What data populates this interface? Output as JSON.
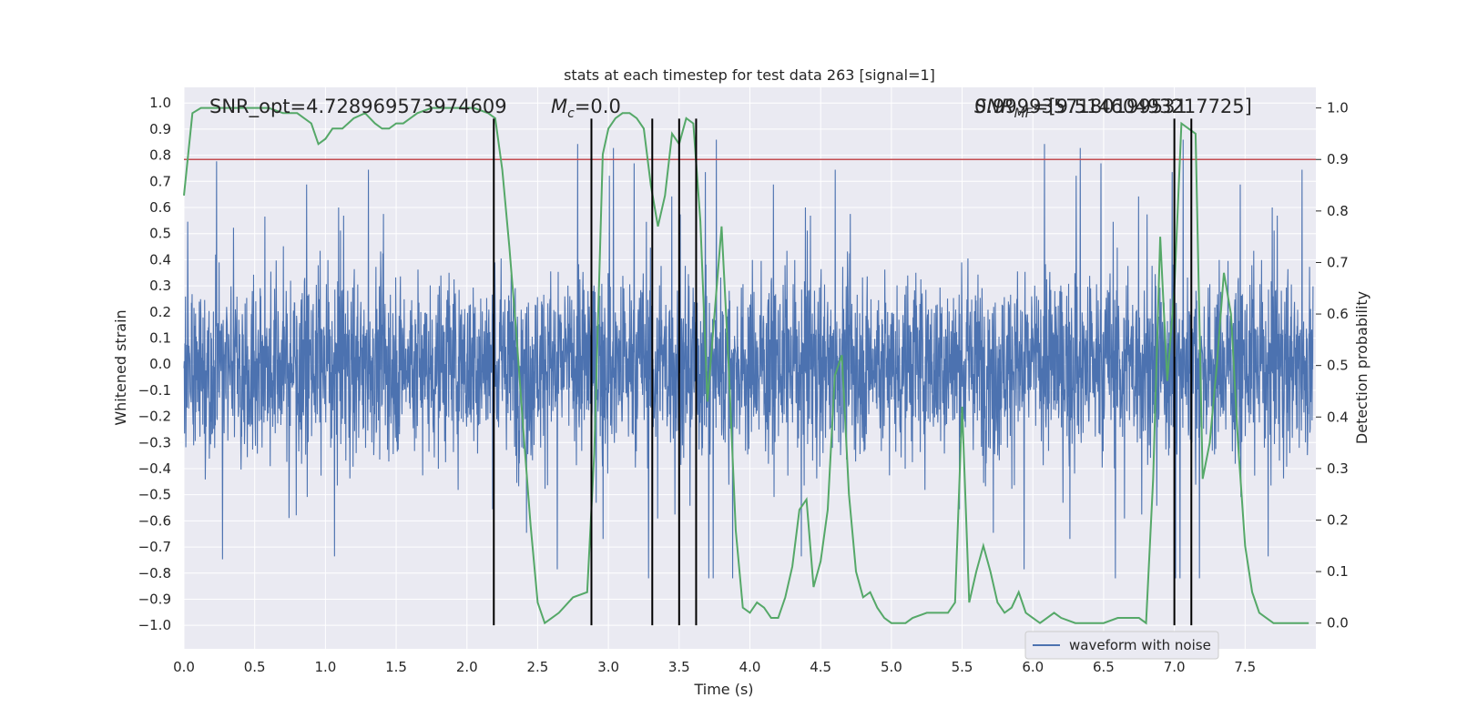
{
  "chart_data": {
    "type": "line",
    "title": "stats at each timestep for test data 263 [signal=1]",
    "xlabel": "Time (s)",
    "ylabel_left": "Whitened strain",
    "ylabel_right": "Detection probability",
    "xlim": [
      0.0,
      8.0
    ],
    "ylim_left": [
      -1.09,
      1.06
    ],
    "ylim_right": [
      -0.05,
      1.04
    ],
    "x_ticks": [
      "0.0",
      "0.5",
      "1.0",
      "1.5",
      "2.0",
      "2.5",
      "3.0",
      "3.5",
      "4.0",
      "4.5",
      "5.0",
      "5.5",
      "6.0",
      "6.5",
      "7.0",
      "7.5"
    ],
    "y_left_ticks": [
      "1.0",
      "0.9",
      "0.8",
      "0.7",
      "0.6",
      "0.5",
      "0.4",
      "0.3",
      "0.2",
      "0.1",
      "0.0",
      "−0.1",
      "−0.2",
      "−0.3",
      "−0.4",
      "−0.5",
      "−0.6",
      "−0.7",
      "−0.8",
      "−0.9",
      "−1.0"
    ],
    "y_right_ticks": [
      "1.0",
      "0.9",
      "0.8",
      "0.7",
      "0.6",
      "0.5",
      "0.4",
      "0.3",
      "0.2",
      "0.1",
      "0.0"
    ],
    "grid": true,
    "background": "#eaeaf2",
    "annotations": {
      "snr_opt": "SNR_opt=4.728969573974609",
      "mc": "=0.0",
      "snr_mf": "=[9.51460493217725]",
      "snr_mf_overlap": "0.9999357180199531"
    },
    "threshold": {
      "value": 0.9,
      "axis": "right",
      "color": "#c44e52"
    },
    "event_lines": {
      "x": [
        2.19,
        2.88,
        3.31,
        3.5,
        3.62,
        7.0,
        7.12
      ],
      "y_range": [
        -1.0,
        0.94
      ],
      "color": "#000000"
    },
    "series": [
      {
        "name": "waveform with noise",
        "axis": "left",
        "color": "#4c72b0",
        "kind": "noise",
        "envelope": {
          "dense_amplitude": 0.4,
          "spike_max": 0.94,
          "spike_min": -0.82
        }
      },
      {
        "name": "",
        "axis": "right",
        "color": "#55a868",
        "x": [
          0.0,
          0.06,
          0.12,
          0.2,
          0.3,
          0.4,
          0.5,
          0.6,
          0.7,
          0.8,
          0.9,
          0.95,
          1.0,
          1.05,
          1.12,
          1.2,
          1.28,
          1.35,
          1.4,
          1.45,
          1.5,
          1.55,
          1.6,
          1.65,
          1.75,
          1.85,
          1.95,
          2.05,
          2.15,
          2.2,
          2.25,
          2.3,
          2.35,
          2.4,
          2.45,
          2.5,
          2.55,
          2.6,
          2.65,
          2.75,
          2.85,
          2.9,
          2.93,
          2.96,
          3.0,
          3.05,
          3.1,
          3.15,
          3.2,
          3.25,
          3.3,
          3.35,
          3.4,
          3.45,
          3.5,
          3.55,
          3.6,
          3.65,
          3.7,
          3.75,
          3.8,
          3.85,
          3.9,
          3.95,
          4.0,
          4.05,
          4.1,
          4.15,
          4.2,
          4.25,
          4.3,
          4.35,
          4.4,
          4.45,
          4.5,
          4.55,
          4.6,
          4.65,
          4.7,
          4.75,
          4.8,
          4.85,
          4.9,
          4.95,
          5.0,
          5.1,
          5.15,
          5.25,
          5.3,
          5.4,
          5.45,
          5.5,
          5.55,
          5.6,
          5.65,
          5.7,
          5.75,
          5.8,
          5.85,
          5.9,
          5.95,
          6.0,
          6.05,
          6.1,
          6.15,
          6.2,
          6.3,
          6.4,
          6.5,
          6.6,
          6.7,
          6.75,
          6.8,
          6.85,
          6.9,
          6.95,
          7.0,
          7.05,
          7.1,
          7.15,
          7.2,
          7.25,
          7.3,
          7.35,
          7.4,
          7.45,
          7.5,
          7.55,
          7.6,
          7.65,
          7.7,
          7.75,
          7.8,
          7.85,
          7.9,
          7.95
        ],
        "values": [
          0.83,
          0.99,
          1.0,
          1.0,
          1.0,
          1.0,
          1.0,
          1.0,
          0.99,
          0.99,
          0.97,
          0.93,
          0.94,
          0.96,
          0.96,
          0.98,
          0.99,
          0.97,
          0.96,
          0.96,
          0.97,
          0.97,
          0.98,
          0.99,
          1.0,
          1.0,
          1.0,
          1.0,
          0.99,
          0.98,
          0.88,
          0.73,
          0.56,
          0.37,
          0.19,
          0.04,
          0.0,
          0.01,
          0.02,
          0.05,
          0.06,
          0.33,
          0.62,
          0.91,
          0.96,
          0.98,
          0.99,
          0.99,
          0.98,
          0.96,
          0.85,
          0.77,
          0.83,
          0.95,
          0.93,
          0.98,
          0.97,
          0.78,
          0.43,
          0.6,
          0.77,
          0.5,
          0.18,
          0.03,
          0.02,
          0.04,
          0.03,
          0.01,
          0.01,
          0.05,
          0.11,
          0.22,
          0.24,
          0.07,
          0.12,
          0.22,
          0.48,
          0.52,
          0.25,
          0.1,
          0.05,
          0.06,
          0.03,
          0.01,
          0.0,
          0.0,
          0.01,
          0.02,
          0.02,
          0.02,
          0.04,
          0.42,
          0.04,
          0.1,
          0.15,
          0.1,
          0.04,
          0.02,
          0.03,
          0.06,
          0.02,
          0.01,
          0.0,
          0.01,
          0.02,
          0.01,
          0.0,
          0.0,
          0.0,
          0.01,
          0.01,
          0.01,
          0.0,
          0.28,
          0.75,
          0.47,
          0.65,
          0.97,
          0.96,
          0.95,
          0.28,
          0.35,
          0.5,
          0.68,
          0.6,
          0.35,
          0.15,
          0.06,
          0.02,
          0.01,
          0.0,
          0.0,
          0.0,
          0.0,
          0.0,
          0.0
        ]
      }
    ],
    "legend": {
      "placement": "lower right",
      "entries": [
        "waveform with noise"
      ]
    }
  }
}
